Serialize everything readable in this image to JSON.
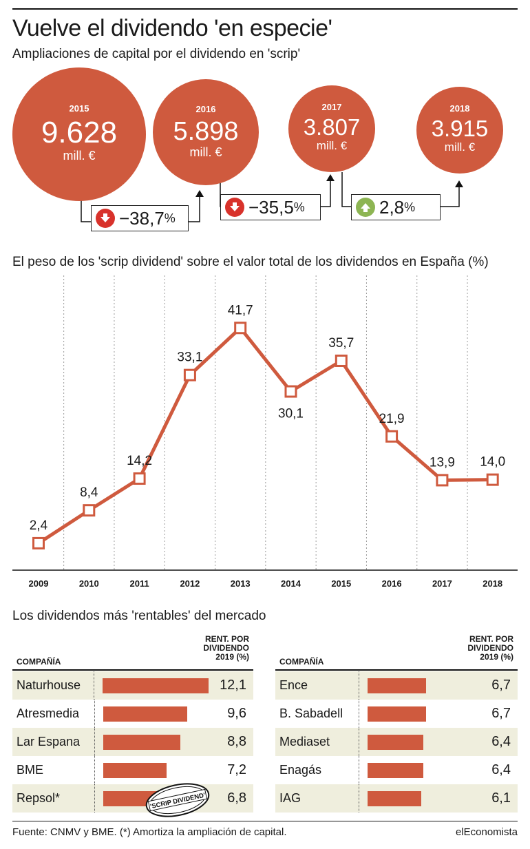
{
  "header": {
    "title": "Vuelve el dividendo 'en especie'",
    "subtitle": "Ampliaciones de capital por el dividendo en 'scrip'"
  },
  "circles": [
    {
      "year": "2015",
      "value": "9.628",
      "unit": "mill. €"
    },
    {
      "year": "2016",
      "value": "5.898",
      "unit": "mill. €"
    },
    {
      "year": "2017",
      "value": "3.807",
      "unit": "mill. €"
    },
    {
      "year": "2018",
      "value": "3.915",
      "unit": "mill. €"
    }
  ],
  "changes": [
    {
      "num": "−38,7",
      "pct": "%",
      "direction": "down"
    },
    {
      "num": "−35,5",
      "pct": "%",
      "direction": "down"
    },
    {
      "num": "2,8",
      "pct": "%",
      "direction": "up"
    }
  ],
  "colors": {
    "accent": "#cf5a3e",
    "down": "#d8322b",
    "up": "#8db553",
    "row_shade": "#efeedd"
  },
  "chart_data": {
    "type": "line",
    "title": "El peso de los 'scrip dividend' sobre el valor total de los dividendos en España (%)",
    "categories": [
      "2009",
      "2010",
      "2011",
      "2012",
      "2013",
      "2014",
      "2015",
      "2016",
      "2017",
      "2018"
    ],
    "values": [
      2.4,
      8.4,
      14.2,
      33.1,
      41.7,
      30.1,
      35.7,
      21.9,
      13.9,
      14.0
    ],
    "value_labels": [
      "2,4",
      "8,4",
      "14,2",
      "33,1",
      "41,7",
      "30,1",
      "35,7",
      "21,9",
      "13,9",
      "14,0"
    ],
    "label_positions": [
      "above",
      "above",
      "above",
      "above",
      "above",
      "below",
      "above",
      "above",
      "above",
      "above"
    ],
    "ylim": [
      0,
      45
    ],
    "grid": "vertical-dotted"
  },
  "ranking": {
    "title": "Los dividendos más 'rentables' del mercado",
    "company_header": "COMPAÑÍA",
    "rent_header": [
      "RENT. POR",
      "DIVIDENDO",
      "2019 (%)"
    ],
    "scale_max": 12.1,
    "stamp": "'SCRIP DIVIDEND'",
    "left": [
      {
        "name": "Naturhouse",
        "value": 12.1,
        "label": "12,1"
      },
      {
        "name": "Atresmedia",
        "value": 9.6,
        "label": "9,6"
      },
      {
        "name": "Lar Espana",
        "value": 8.8,
        "label": "8,8"
      },
      {
        "name": "BME",
        "value": 7.2,
        "label": "7,2"
      },
      {
        "name": "Repsol*",
        "value": 6.8,
        "label": "6,8"
      }
    ],
    "right": [
      {
        "name": "Ence",
        "value": 6.7,
        "label": "6,7"
      },
      {
        "name": "B. Sabadell",
        "value": 6.7,
        "label": "6,7"
      },
      {
        "name": "Mediaset",
        "value": 6.4,
        "label": "6,4"
      },
      {
        "name": "Enagás",
        "value": 6.4,
        "label": "6,4"
      },
      {
        "name": "IAG",
        "value": 6.1,
        "label": "6,1"
      }
    ]
  },
  "footer": {
    "source": "Fuente: CNMV y BME. (*) Amortiza la ampliación de capital.",
    "brand": "elEconomista"
  }
}
